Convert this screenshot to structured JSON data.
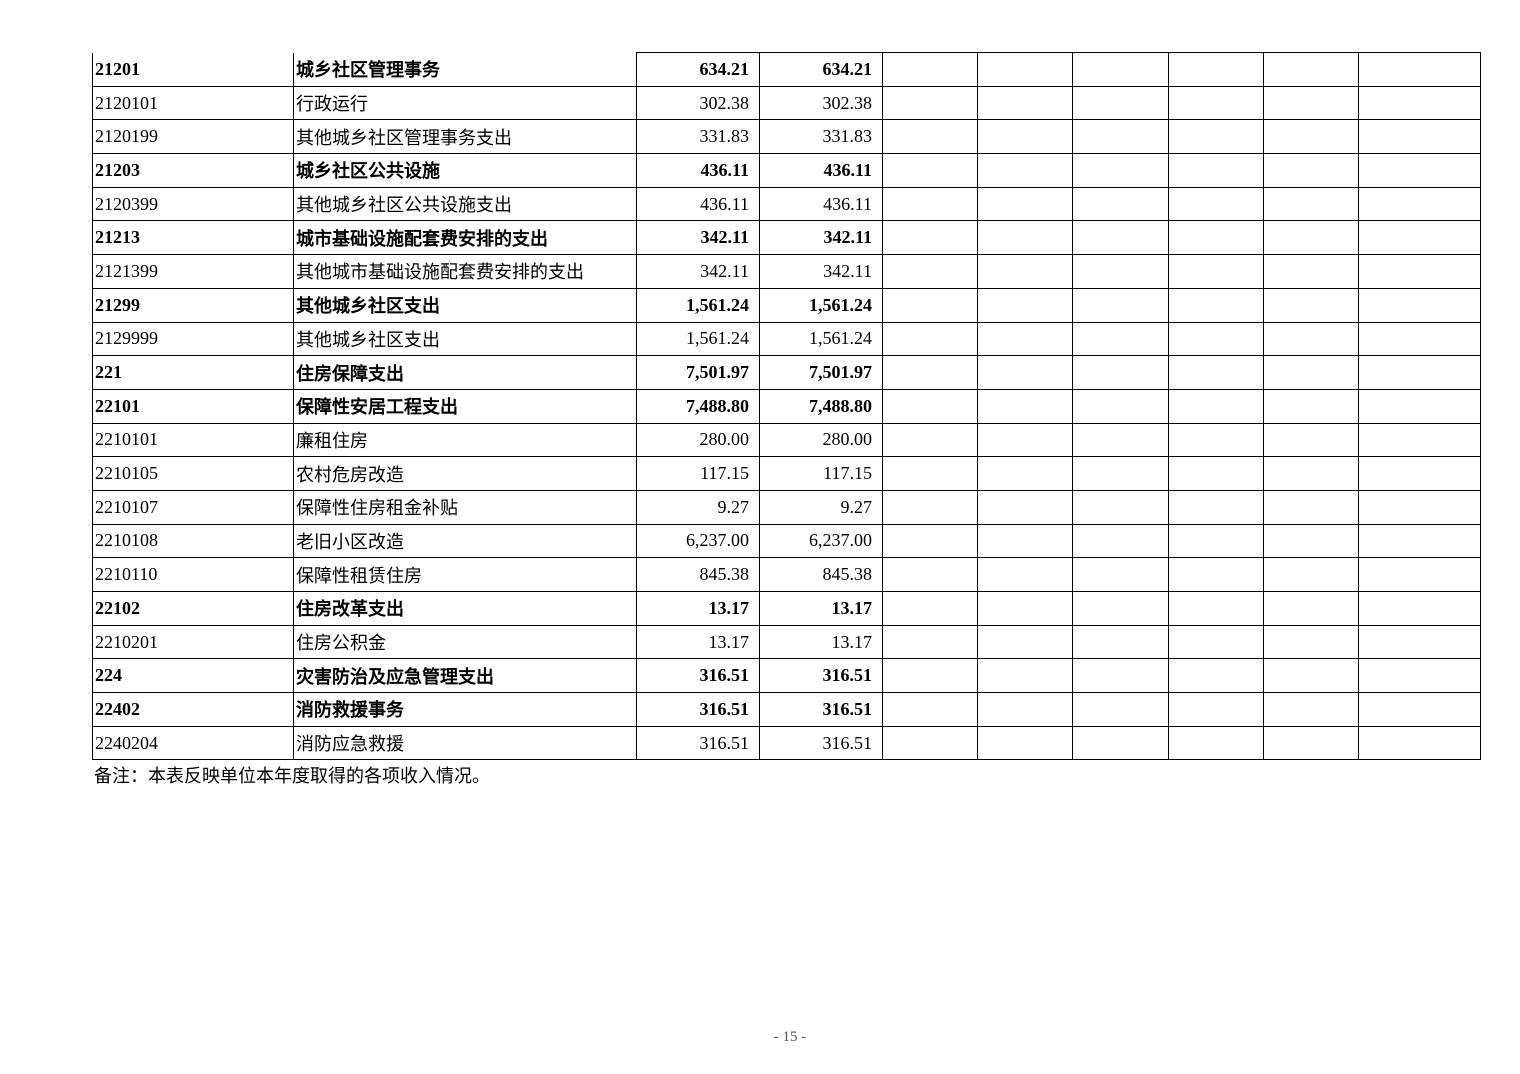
{
  "rows": [
    {
      "code": "21201",
      "name": "城乡社区管理事务",
      "a": "634.21",
      "b": "634.21",
      "bold": true
    },
    {
      "code": "2120101",
      "name": "行政运行",
      "a": "302.38",
      "b": "302.38",
      "bold": false
    },
    {
      "code": "2120199",
      "name": "其他城乡社区管理事务支出",
      "a": "331.83",
      "b": "331.83",
      "bold": false
    },
    {
      "code": "21203",
      "name": "城乡社区公共设施",
      "a": "436.11",
      "b": "436.11",
      "bold": true
    },
    {
      "code": "2120399",
      "name": "其他城乡社区公共设施支出",
      "a": "436.11",
      "b": "436.11",
      "bold": false
    },
    {
      "code": "21213",
      "name": "城市基础设施配套费安排的支出",
      "a": "342.11",
      "b": "342.11",
      "bold": true
    },
    {
      "code": "2121399",
      "name": "其他城市基础设施配套费安排的支出",
      "a": "342.11",
      "b": "342.11",
      "bold": false
    },
    {
      "code": "21299",
      "name": "其他城乡社区支出",
      "a": "1,561.24",
      "b": "1,561.24",
      "bold": true
    },
    {
      "code": "2129999",
      "name": "其他城乡社区支出",
      "a": "1,561.24",
      "b": "1,561.24",
      "bold": false
    },
    {
      "code": "221",
      "name": "住房保障支出",
      "a": "7,501.97",
      "b": "7,501.97",
      "bold": true
    },
    {
      "code": "22101",
      "name": "保障性安居工程支出",
      "a": "7,488.80",
      "b": "7,488.80",
      "bold": true
    },
    {
      "code": "2210101",
      "name": "廉租住房",
      "a": "280.00",
      "b": "280.00",
      "bold": false
    },
    {
      "code": "2210105",
      "name": "农村危房改造",
      "a": "117.15",
      "b": "117.15",
      "bold": false
    },
    {
      "code": "2210107",
      "name": "保障性住房租金补贴",
      "a": "9.27",
      "b": "9.27",
      "bold": false
    },
    {
      "code": "2210108",
      "name": "老旧小区改造",
      "a": "6,237.00",
      "b": "6,237.00",
      "bold": false
    },
    {
      "code": "2210110",
      "name": "保障性租赁住房",
      "a": "845.38",
      "b": "845.38",
      "bold": false
    },
    {
      "code": "22102",
      "name": "住房改革支出",
      "a": "13.17",
      "b": "13.17",
      "bold": true
    },
    {
      "code": "2210201",
      "name": "住房公积金",
      "a": "13.17",
      "b": "13.17",
      "bold": false
    },
    {
      "code": "224",
      "name": "灾害防治及应急管理支出",
      "a": "316.51",
      "b": "316.51",
      "bold": true
    },
    {
      "code": "22402",
      "name": "消防救援事务",
      "a": "316.51",
      "b": "316.51",
      "bold": true
    },
    {
      "code": "2240204",
      "name": "消防应急救援",
      "a": "316.51",
      "b": "316.51",
      "bold": false
    }
  ],
  "note": "备注：本表反映单位本年度取得的各项收入情况。",
  "page_number": "- 15 -"
}
